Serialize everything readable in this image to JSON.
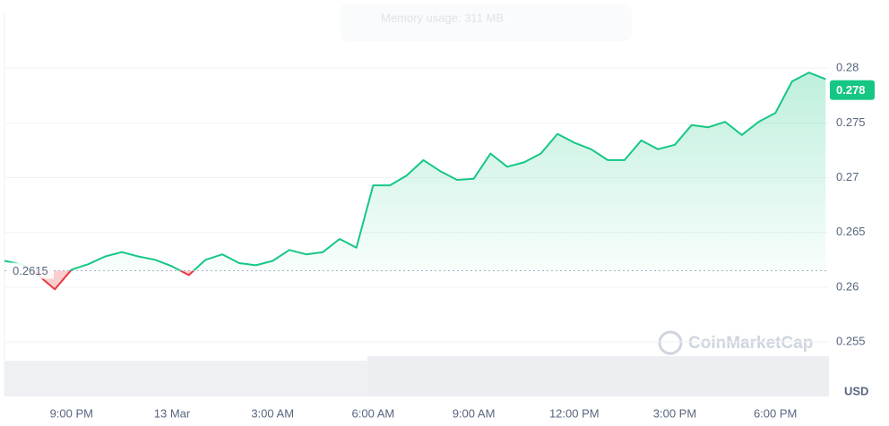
{
  "chart_data": {
    "type": "line",
    "overlay_text": "Memory usage: 311 MB",
    "watermark": "CoinMarketCap",
    "currency": "USD",
    "baseline": 0.2615,
    "current_price": 0.278,
    "x": [
      0,
      0.5,
      1,
      1.5,
      2,
      2.5,
      3,
      3.5,
      4,
      4.5,
      5,
      5.5,
      6,
      6.5,
      7,
      7.5,
      8,
      8.5,
      9,
      9.5,
      10,
      10.5,
      11,
      11.5,
      12,
      12.5,
      13,
      13.5,
      14,
      14.5,
      15,
      15.5,
      16,
      16.5,
      17,
      17.5,
      18,
      18.5,
      19,
      19.5,
      20,
      20.5,
      21,
      21.5,
      22,
      22.5,
      23,
      23.5,
      24,
      24.5
    ],
    "values": [
      0.2624,
      0.2621,
      0.2611,
      0.2598,
      0.2616,
      0.2621,
      0.2628,
      0.2632,
      0.2628,
      0.2625,
      0.2619,
      0.2611,
      0.2625,
      0.263,
      0.2622,
      0.262,
      0.2624,
      0.2634,
      0.263,
      0.2632,
      0.2644,
      0.2636,
      0.2693,
      0.2693,
      0.2702,
      0.2716,
      0.2706,
      0.2698,
      0.2699,
      0.2722,
      0.271,
      0.2714,
      0.2722,
      0.274,
      0.2732,
      0.2726,
      0.2716,
      0.2716,
      0.2734,
      0.2726,
      0.273,
      0.2748,
      0.2746,
      0.2751,
      0.2739,
      0.2751,
      0.2759,
      0.2788,
      0.2796,
      0.279
    ],
    "up_color": "#16c784",
    "down_color": "#ea3943",
    "xlim": [
      0,
      24.6
    ],
    "xticks": [
      {
        "value": 2,
        "label": "9:00 PM"
      },
      {
        "value": 5,
        "label": "13 Mar"
      },
      {
        "value": 8,
        "label": "3:00 AM"
      },
      {
        "value": 11,
        "label": "6:00 AM"
      },
      {
        "value": 14,
        "label": "9:00 AM"
      },
      {
        "value": 17,
        "label": "12:00 PM"
      },
      {
        "value": 20,
        "label": "3:00 PM"
      },
      {
        "value": 23,
        "label": "6:00 PM"
      }
    ],
    "ylim": [
      0.2501,
      0.285
    ],
    "yticks": [
      0.255,
      0.26,
      0.265,
      0.27,
      0.275,
      0.28
    ],
    "grid": true
  }
}
